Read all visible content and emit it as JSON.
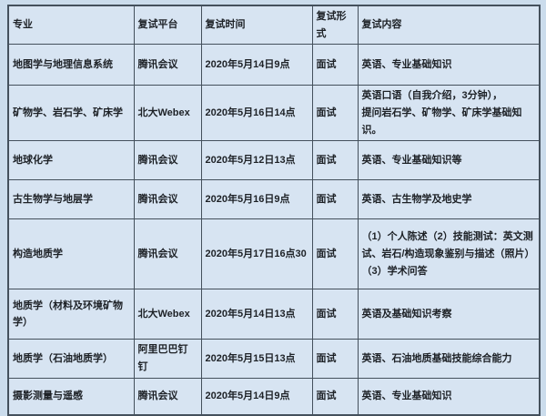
{
  "colors": {
    "page_bg": "#cbdcec",
    "cell_bg": "#d7e4f2",
    "border": "#44505c",
    "text": "#1d2126"
  },
  "table": {
    "columns": [
      {
        "key": "major",
        "label": "专业"
      },
      {
        "key": "platform",
        "label": "复试平台"
      },
      {
        "key": "time",
        "label": "复试时间"
      },
      {
        "key": "format",
        "label": "复试形式"
      },
      {
        "key": "content",
        "label": "复试内容"
      }
    ],
    "rows": [
      {
        "major": "地图学与地理信息系统",
        "platform": "腾讯会议",
        "time": "2020年5月14日9点",
        "format": "面试",
        "content": "英语、专业基础知识"
      },
      {
        "major": "矿物学、岩石学、矿床学",
        "platform": "北大Webex",
        "time": "2020年5月16日14点",
        "format": "面试",
        "content": "英语口语（自我介绍，3分钟），\n提问岩石学、矿物学、矿床学基础知识。"
      },
      {
        "major": "地球化学",
        "platform": "腾讯会议",
        "time": "2020年5月12日13点",
        "format": "面试",
        "content": "英语、专业基础知识等"
      },
      {
        "major": "古生物学与地层学",
        "platform": "腾讯会议",
        "time": "2020年5月16日9点",
        "format": "面试",
        "content": "英语、古生物学及地史学"
      },
      {
        "major": "构造地质学",
        "platform": "腾讯会议",
        "time": "2020年5月17日16点30",
        "format": "面试",
        "content": "（1）个人陈述（2）技能测试：英文测试、岩石/构造现象鉴别与描述（照片）（3）学术问答"
      },
      {
        "major": "地质学（材料及环境矿物学）",
        "platform": "北大Webex",
        "time": "2020年5月14日13点",
        "format": "面试",
        "content": "英语及基础知识考察"
      },
      {
        "major": "地质学（石油地质学）",
        "platform": "阿里巴巴钉钉",
        "time": "2020年5月15日13点",
        "format": "面试",
        "content": "英语、石油地质基础技能综合能力"
      },
      {
        "major": "摄影测量与遥感",
        "platform": "腾讯会议",
        "time": "2020年5月14日9点",
        "format": "面试",
        "content": "英语、专业基础知识"
      }
    ]
  }
}
